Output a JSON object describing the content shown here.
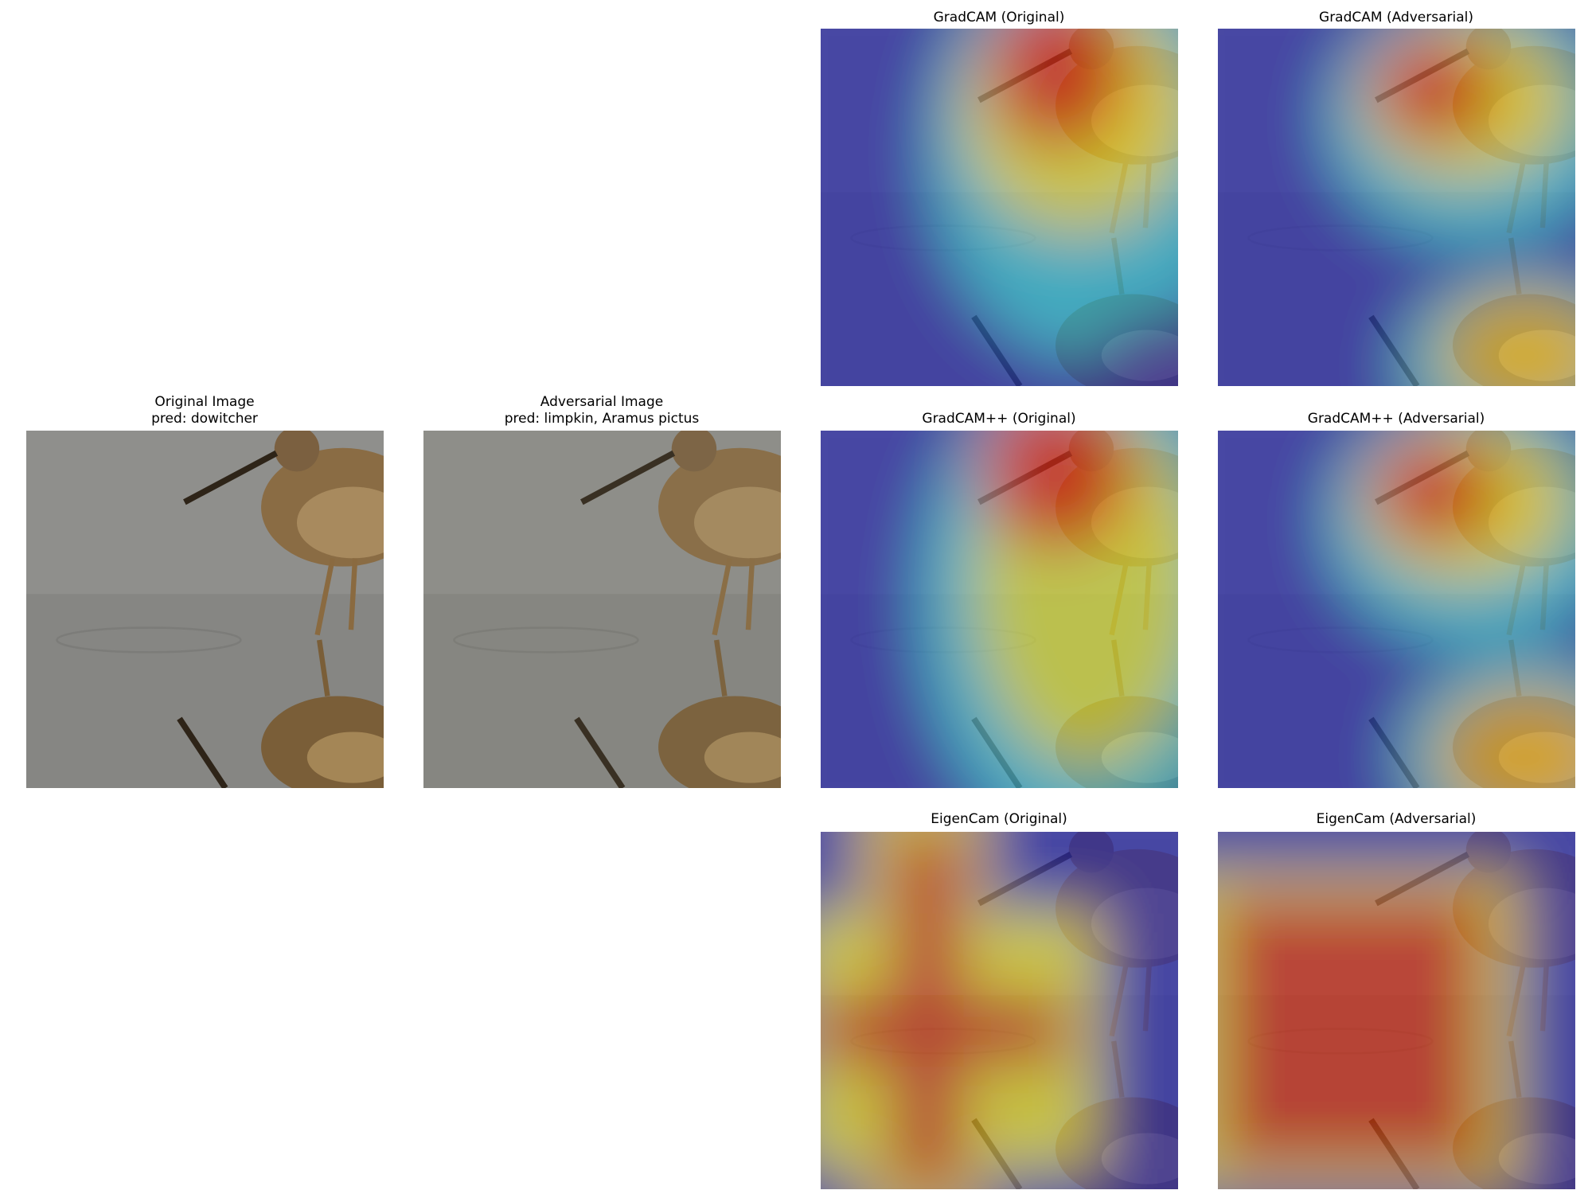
{
  "panels": [
    {
      "lines": [
        "Original Image",
        "pred: dowitcher"
      ]
    },
    {
      "lines": [
        "Adversarial Image",
        "pred: limpkin, Aramus pictus"
      ]
    },
    {
      "lines": [
        "GradCAM (Original)"
      ]
    },
    {
      "lines": [
        "GradCAM (Adversarial)"
      ]
    },
    {
      "lines": [
        "GradCAM++ (Original)"
      ]
    },
    {
      "lines": [
        "GradCAM++ (Adversarial)"
      ]
    },
    {
      "lines": [
        "EigenCam (Original)"
      ]
    },
    {
      "lines": [
        "EigenCam (Adversarial)"
      ]
    }
  ]
}
